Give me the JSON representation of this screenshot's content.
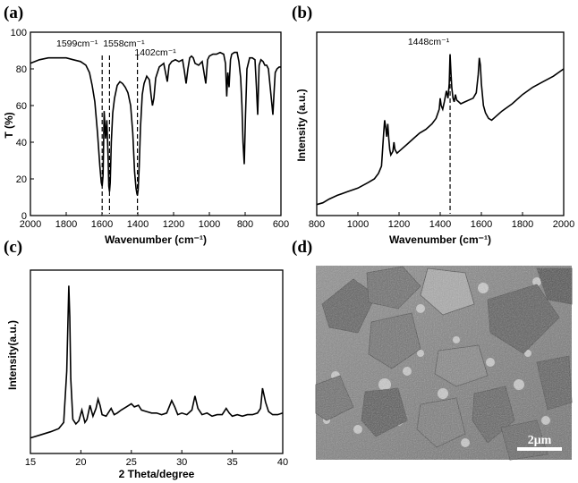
{
  "panels": {
    "a": {
      "label": "(a)"
    },
    "b": {
      "label": "(b)"
    },
    "c": {
      "label": "(c)"
    },
    "d": {
      "label": "(d)",
      "scale_bar": "2μm"
    }
  },
  "chart_data": [
    {
      "id": "a",
      "type": "line",
      "xlabel": "Wavenumber (cm⁻¹)",
      "ylabel": "T (%)",
      "xlim": [
        2000,
        600
      ],
      "ylim": [
        0,
        100
      ],
      "xticks": [
        2000,
        1800,
        1600,
        1400,
        1200,
        1000,
        800,
        600
      ],
      "yticks": [
        0,
        20,
        40,
        60,
        80,
        100
      ],
      "annotations": [
        {
          "text": "1599cm⁻¹",
          "x": 1599
        },
        {
          "text": "1558cm⁻¹",
          "x": 1558
        },
        {
          "text": "1402cm⁻¹",
          "x": 1402
        }
      ],
      "series": [
        {
          "x": [
            2000,
            1950,
            1900,
            1850,
            1800,
            1760,
            1720,
            1690,
            1670,
            1655,
            1640,
            1625,
            1612,
            1604,
            1599,
            1594,
            1588,
            1580,
            1573,
            1566,
            1562,
            1558,
            1554,
            1548,
            1540,
            1530,
            1515,
            1500,
            1485,
            1470,
            1455,
            1440,
            1428,
            1418,
            1410,
            1405,
            1402,
            1398,
            1392,
            1385,
            1375,
            1365,
            1350,
            1335,
            1325,
            1318,
            1310,
            1300,
            1280,
            1255,
            1245,
            1235,
            1225,
            1210,
            1190,
            1170,
            1150,
            1140,
            1130,
            1120,
            1110,
            1100,
            1090,
            1080,
            1060,
            1040,
            1030,
            1020,
            1010,
            1000,
            980,
            960,
            940,
            920,
            910,
            903,
            897,
            890,
            882,
            875,
            860,
            845,
            835,
            825,
            818,
            812,
            805,
            798,
            790,
            775,
            760,
            745,
            737,
            730,
            722,
            712,
            700,
            690,
            680,
            670,
            660,
            650,
            645,
            638,
            632,
            622,
            610,
            600
          ],
          "y": [
            83,
            85,
            86,
            86,
            86,
            85,
            84,
            82,
            78,
            71,
            62,
            45,
            27,
            18,
            16,
            22,
            57,
            42,
            52,
            32,
            16,
            13,
            18,
            40,
            56,
            64,
            71,
            73,
            72,
            70,
            67,
            60,
            45,
            24,
            15,
            12,
            11,
            14,
            27,
            48,
            66,
            72,
            76,
            74,
            65,
            60,
            64,
            75,
            81,
            83,
            78,
            73,
            82,
            84,
            85,
            84,
            85,
            79,
            72,
            80,
            86,
            87,
            86,
            83,
            82,
            84,
            78,
            72,
            85,
            87,
            88,
            88,
            89,
            88,
            83,
            65,
            78,
            70,
            85,
            88,
            89,
            89,
            84,
            75,
            60,
            40,
            28,
            55,
            80,
            86,
            86,
            85,
            70,
            55,
            82,
            85,
            84,
            82,
            82,
            80,
            70,
            60,
            55,
            68,
            78,
            80,
            81,
            81
          ]
        }
      ]
    },
    {
      "id": "b",
      "type": "line",
      "xlabel": "Wavenumber (cm⁻¹)",
      "ylabel": "Intensity (a.u.)",
      "xlim": [
        800,
        2000
      ],
      "xticks": [
        800,
        1000,
        1200,
        1400,
        1600,
        1800,
        2000
      ],
      "annotations": [
        {
          "text": "1448cm⁻¹",
          "x": 1448
        }
      ],
      "series": [
        {
          "x": [
            800,
            830,
            860,
            900,
            950,
            1000,
            1050,
            1080,
            1100,
            1115,
            1125,
            1130,
            1135,
            1140,
            1145,
            1150,
            1155,
            1160,
            1170,
            1175,
            1180,
            1190,
            1210,
            1240,
            1270,
            1300,
            1330,
            1360,
            1380,
            1395,
            1400,
            1405,
            1412,
            1420,
            1430,
            1438,
            1444,
            1448,
            1452,
            1456,
            1462,
            1468,
            1474,
            1480,
            1490,
            1500,
            1520,
            1540,
            1560,
            1575,
            1585,
            1590,
            1595,
            1600,
            1610,
            1620,
            1635,
            1650,
            1670,
            1700,
            1750,
            1800,
            1850,
            1900,
            1950,
            2000
          ],
          "y": [
            6,
            7,
            9,
            11,
            13,
            15,
            18,
            20,
            23,
            27,
            45,
            52,
            48,
            43,
            50,
            42,
            36,
            33,
            35,
            40,
            36,
            34,
            36,
            39,
            42,
            45,
            47,
            50,
            53,
            58,
            64,
            60,
            58,
            62,
            68,
            64,
            72,
            88,
            78,
            70,
            64,
            62,
            66,
            63,
            62,
            61,
            62,
            63,
            64,
            67,
            77,
            86,
            82,
            72,
            60,
            56,
            53,
            52,
            54,
            57,
            61,
            66,
            70,
            73,
            76,
            80
          ]
        }
      ]
    },
    {
      "id": "c",
      "type": "line",
      "xlabel": "2 Theta/degree",
      "ylabel": "Intensity(a.u.)",
      "xlim": [
        15,
        40
      ],
      "xticks": [
        15,
        20,
        25,
        30,
        35,
        40
      ],
      "series": [
        {
          "x": [
            15,
            16,
            17,
            17.8,
            18.3,
            18.6,
            18.8,
            18.9,
            19.0,
            19.2,
            19.5,
            19.8,
            20.1,
            20.4,
            20.6,
            20.9,
            21.2,
            21.5,
            21.7,
            21.9,
            22.1,
            22.5,
            23.0,
            23.3,
            23.6,
            24.0,
            24.5,
            25.0,
            25.3,
            25.7,
            26.0,
            26.5,
            27.0,
            27.5,
            28.0,
            28.5,
            29.0,
            29.3,
            29.6,
            30.0,
            30.5,
            31.0,
            31.3,
            31.6,
            32.0,
            32.5,
            33.0,
            33.5,
            34.0,
            34.4,
            34.7,
            35.0,
            35.5,
            36.0,
            36.5,
            37.0,
            37.5,
            37.8,
            38.0,
            38.3,
            38.6,
            39.0,
            39.5,
            40
          ],
          "y": [
            2,
            4,
            6,
            8,
            12,
            45,
            100,
            80,
            40,
            14,
            11,
            13,
            20,
            12,
            14,
            23,
            16,
            21,
            27,
            23,
            17,
            16,
            21,
            17,
            18,
            20,
            22,
            24,
            22,
            23,
            20,
            19,
            18,
            18,
            17,
            18,
            26,
            22,
            17,
            18,
            17,
            20,
            29,
            21,
            17,
            18,
            16,
            17,
            17,
            21,
            18,
            16,
            17,
            16,
            17,
            17,
            18,
            21,
            34,
            25,
            19,
            17,
            17,
            18
          ]
        }
      ]
    }
  ]
}
